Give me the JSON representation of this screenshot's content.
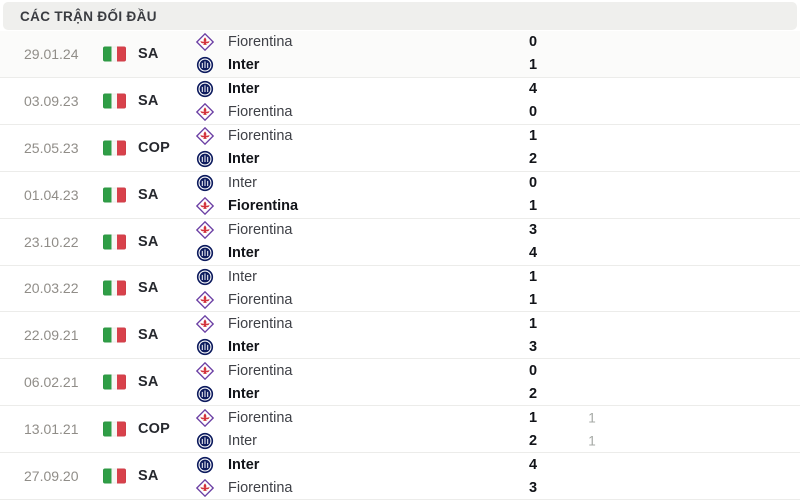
{
  "header": {
    "title": "CÁC TRẬN ĐỐI ĐẦU"
  },
  "colors": {
    "header_bg": "#efefed",
    "row_divider": "#ececea",
    "date_text": "#908d88",
    "winner_text": "#121419",
    "team_text": "#3f4147",
    "pen_text": "#a4a8a4",
    "flag_green": "#2f9e46",
    "flag_red": "#d8414b",
    "inter_navy": "#0d1b5e",
    "fiorentina_purple": "#6b3fa4",
    "fiorentina_red": "#d2323c"
  },
  "icons": {
    "flag": "italy-flag",
    "fiorentina": "fiorentina-logo",
    "inter": "inter-logo"
  },
  "matches": [
    {
      "date": "29.01.24",
      "comp": "SA",
      "teams": [
        {
          "name": "Fiorentina",
          "logo": "fiorentina",
          "score": "0",
          "winner": false
        },
        {
          "name": "Inter",
          "logo": "inter",
          "score": "1",
          "winner": true
        }
      ]
    },
    {
      "date": "03.09.23",
      "comp": "SA",
      "teams": [
        {
          "name": "Inter",
          "logo": "inter",
          "score": "4",
          "winner": true
        },
        {
          "name": "Fiorentina",
          "logo": "fiorentina",
          "score": "0",
          "winner": false
        }
      ]
    },
    {
      "date": "25.05.23",
      "comp": "COP",
      "teams": [
        {
          "name": "Fiorentina",
          "logo": "fiorentina",
          "score": "1",
          "winner": false
        },
        {
          "name": "Inter",
          "logo": "inter",
          "score": "2",
          "winner": true
        }
      ]
    },
    {
      "date": "01.04.23",
      "comp": "SA",
      "teams": [
        {
          "name": "Inter",
          "logo": "inter",
          "score": "0",
          "winner": false
        },
        {
          "name": "Fiorentina",
          "logo": "fiorentina",
          "score": "1",
          "winner": true
        }
      ]
    },
    {
      "date": "23.10.22",
      "comp": "SA",
      "teams": [
        {
          "name": "Fiorentina",
          "logo": "fiorentina",
          "score": "3",
          "winner": false
        },
        {
          "name": "Inter",
          "logo": "inter",
          "score": "4",
          "winner": true
        }
      ]
    },
    {
      "date": "20.03.22",
      "comp": "SA",
      "teams": [
        {
          "name": "Inter",
          "logo": "inter",
          "score": "1",
          "winner": false
        },
        {
          "name": "Fiorentina",
          "logo": "fiorentina",
          "score": "1",
          "winner": false
        }
      ]
    },
    {
      "date": "22.09.21",
      "comp": "SA",
      "teams": [
        {
          "name": "Fiorentina",
          "logo": "fiorentina",
          "score": "1",
          "winner": false
        },
        {
          "name": "Inter",
          "logo": "inter",
          "score": "3",
          "winner": true
        }
      ]
    },
    {
      "date": "06.02.21",
      "comp": "SA",
      "teams": [
        {
          "name": "Fiorentina",
          "logo": "fiorentina",
          "score": "0",
          "winner": false
        },
        {
          "name": "Inter",
          "logo": "inter",
          "score": "2",
          "winner": true
        }
      ]
    },
    {
      "date": "13.01.21",
      "comp": "COP",
      "teams": [
        {
          "name": "Fiorentina",
          "logo": "fiorentina",
          "score": "1",
          "winner": false,
          "pen": "1"
        },
        {
          "name": "Inter",
          "logo": "inter",
          "score": "2",
          "winner": false,
          "pen": "1"
        }
      ]
    },
    {
      "date": "27.09.20",
      "comp": "SA",
      "teams": [
        {
          "name": "Inter",
          "logo": "inter",
          "score": "4",
          "winner": true
        },
        {
          "name": "Fiorentina",
          "logo": "fiorentina",
          "score": "3",
          "winner": false
        }
      ]
    }
  ]
}
